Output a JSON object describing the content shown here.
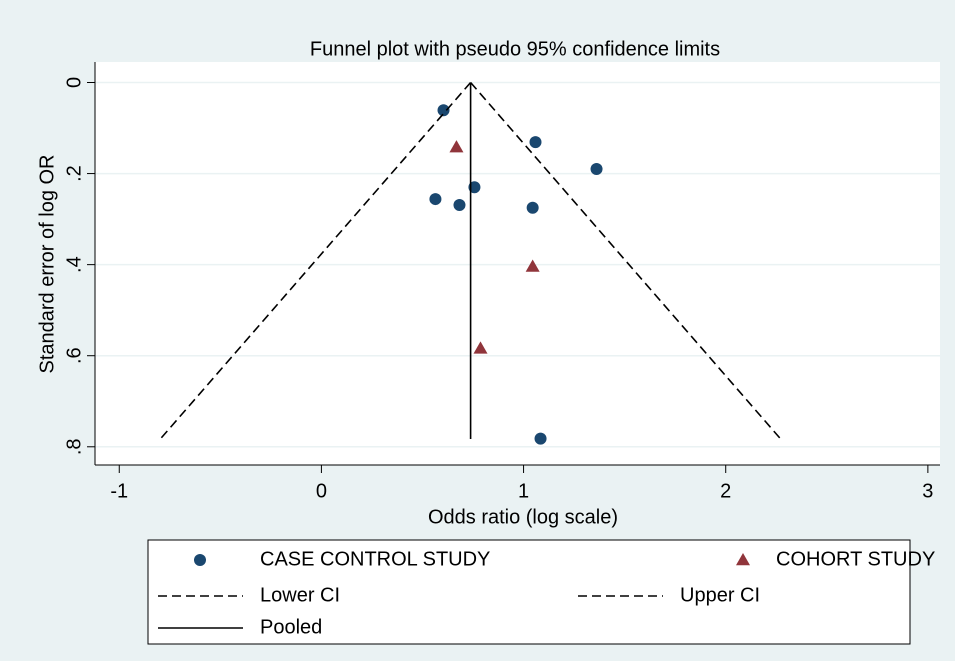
{
  "chart_data": {
    "type": "scatter",
    "title": "Funnel plot with pseudo 95% confidence limits",
    "x_label": "Odds ratio (log scale)",
    "y_label": "Standard error of log OR",
    "xlim": [
      -1.12,
      3.06
    ],
    "ylim": [
      -0.045,
      0.84
    ],
    "y_inverted": true,
    "xticks": [
      -1,
      0,
      1,
      2,
      3
    ],
    "yticks": [
      0,
      {
        "value": 0.2,
        "label": ".2"
      },
      {
        "value": 0.4,
        "label": ".4"
      },
      {
        "value": 0.6,
        "label": ".6"
      },
      {
        "value": 0.8,
        "label": ".8"
      }
    ],
    "grid": true,
    "series": [
      {
        "name": "CASE CONTROL STUDY",
        "color": "#1a476f",
        "marker": "circle",
        "x": [
          0.604,
          1.059,
          1.361,
          0.757,
          0.564,
          0.683,
          1.045,
          1.084
        ],
        "values": [
          0.061,
          0.131,
          0.19,
          0.23,
          0.256,
          0.269,
          0.275,
          0.782
        ]
      },
      {
        "name": "COHORT STUDY",
        "color": "#90353b",
        "marker": "triangle",
        "x": [
          0.668,
          1.045,
          0.787
        ],
        "values": [
          0.142,
          0.404,
          0.584
        ]
      },
      {
        "name": "Lower CI",
        "color": "#000000",
        "line": "dashed",
        "x": [
          0.738,
          -0.797
        ],
        "values": [
          0,
          0.783
        ]
      },
      {
        "name": "Upper CI",
        "color": "#000000",
        "line": "dashed",
        "x": [
          0.738,
          2.272
        ],
        "values": [
          0,
          0.783
        ]
      },
      {
        "name": "Pooled",
        "color": "#000000",
        "line": "solid",
        "x": [
          0.738,
          0.738
        ],
        "values": [
          0,
          0.783
        ]
      }
    ]
  }
}
